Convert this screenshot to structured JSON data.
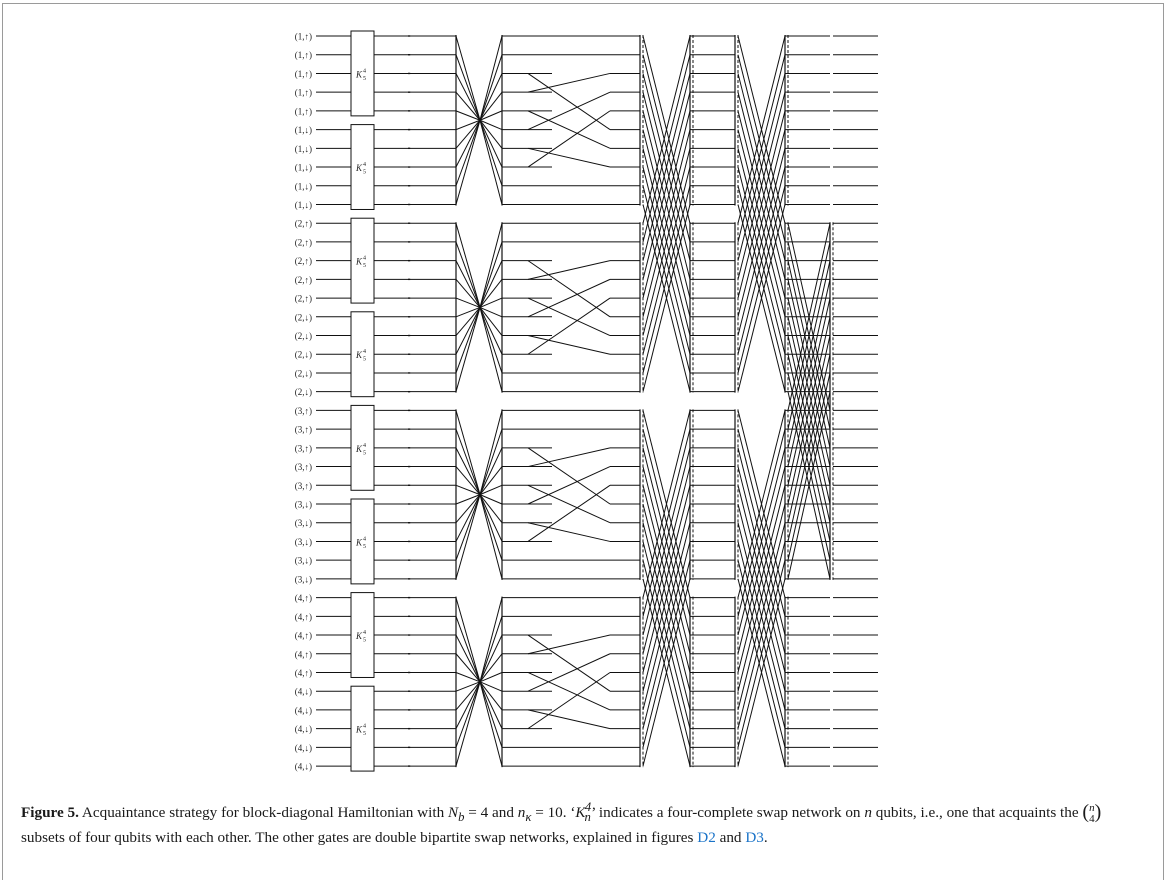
{
  "figure": {
    "qubit_labels": [
      "(1,↑)",
      "(1,↑)",
      "(1,↑)",
      "(1,↑)",
      "(1,↑)",
      "(1,↓)",
      "(1,↓)",
      "(1,↓)",
      "(1,↓)",
      "(1,↓)",
      "(2,↑)",
      "(2,↑)",
      "(2,↑)",
      "(2,↑)",
      "(2,↑)",
      "(2,↓)",
      "(2,↓)",
      "(2,↓)",
      "(2,↓)",
      "(2,↓)",
      "(3,↑)",
      "(3,↑)",
      "(3,↑)",
      "(3,↑)",
      "(3,↑)",
      "(3,↓)",
      "(3,↓)",
      "(3,↓)",
      "(3,↓)",
      "(3,↓)",
      "(4,↑)",
      "(4,↑)",
      "(4,↑)",
      "(4,↑)",
      "(4,↑)",
      "(4,↓)",
      "(4,↓)",
      "(4,↓)",
      "(4,↓)",
      "(4,↓)"
    ],
    "gate_label_base": "K",
    "gate_label_sup": "4",
    "gate_label_sub": "5",
    "num_gate_blocks": 8
  },
  "caption": {
    "label": "Figure 5.",
    "part1": "Acquaintance strategy for block-diagonal Hamiltonian with",
    "nb_symbol": "N",
    "nb_sub": "b",
    "nb_value": "= 4 and",
    "nk_symbol": "n",
    "nk_sub": "κ",
    "nk_value": "= 10. ‘",
    "kn_symbol": "K",
    "kn_sub": "n",
    "kn_sup": "4",
    "part2": "’ indicates a four-complete swap network on",
    "n_symbol": "n",
    "part3": "qubits, i.e., one that acquaints the",
    "binom_top": "n",
    "binom_bottom": "4",
    "part4": "subsets of four qubits with each other. The other gates are double bipartite swap networks, explained in figures",
    "ref1": "D2",
    "and_text": "and",
    "ref2": "D3",
    "end": "."
  }
}
